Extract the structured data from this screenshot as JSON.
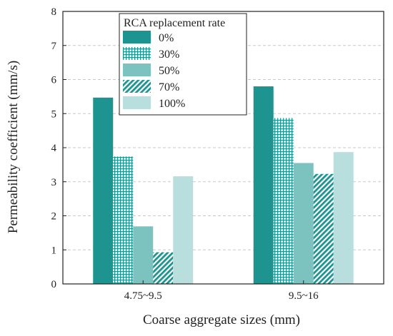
{
  "chart_data": {
    "type": "bar",
    "title": "",
    "xlabel": "Coarse aggregate sizes (mm)",
    "ylabel": "Permeability coefficient (mm/s)",
    "ylim": [
      0,
      8
    ],
    "yticks": [
      "0",
      "1",
      "2",
      "3",
      "4",
      "5",
      "6",
      "7",
      "8"
    ],
    "grid": "horizontal dashed",
    "categories": [
      "4.75~9.5",
      "9.5~16"
    ],
    "legend": {
      "title": "RCA replacement rate",
      "placement": "top-left"
    },
    "series": [
      {
        "name": "0%",
        "values": [
          5.47,
          5.8
        ],
        "color": "#1e9490",
        "pattern": "solid"
      },
      {
        "name": "30%",
        "values": [
          3.74,
          4.87
        ],
        "color": "#1e9490",
        "pattern": "grid"
      },
      {
        "name": "50%",
        "values": [
          1.69,
          3.55
        ],
        "color": "#7cc3c0",
        "pattern": "solid"
      },
      {
        "name": "70%",
        "values": [
          0.93,
          3.23
        ],
        "color": "#1e9490",
        "pattern": "diagonal"
      },
      {
        "name": "100%",
        "values": [
          3.16,
          3.87
        ],
        "color": "#b8dfdd",
        "pattern": "solid"
      }
    ]
  }
}
